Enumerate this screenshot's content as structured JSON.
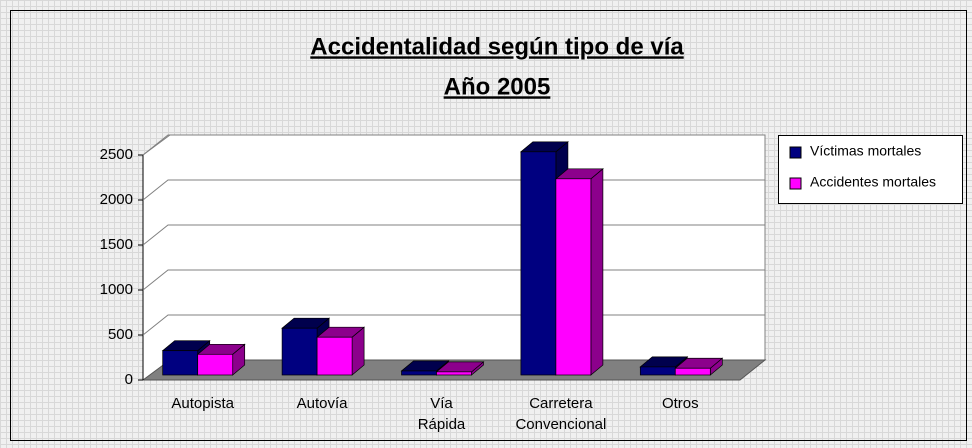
{
  "chart_data": {
    "type": "bar3d",
    "title": [
      "Accidentalidad según tipo de vía",
      "Año 2005"
    ],
    "categories": [
      "Autopista",
      "Autovía",
      "Vía Rápida",
      "Carretera Convencional",
      "Otros"
    ],
    "series": [
      {
        "name": "Víctimas mortales",
        "color": "#000080",
        "side": "#00004d",
        "values": [
          270,
          520,
          45,
          2480,
          90
        ]
      },
      {
        "name": "Accidentes mortales",
        "color": "#ff00ff",
        "side": "#8c008c",
        "values": [
          230,
          420,
          35,
          2180,
          75
        ]
      }
    ],
    "ylim": [
      0,
      2500
    ],
    "yticks": [
      0,
      500,
      1000,
      1500,
      2000,
      2500
    ],
    "grid": true,
    "legend": "right"
  }
}
